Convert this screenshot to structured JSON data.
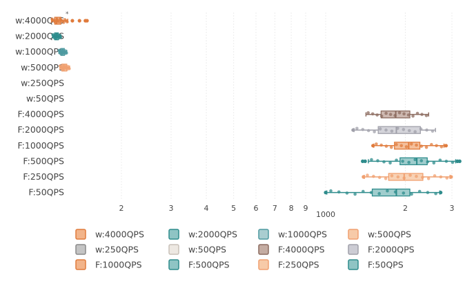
{
  "chart_data": {
    "type": "box",
    "orientation": "horizontal",
    "x_scale": "log",
    "grid": "vertical dashed",
    "legend_position": "bottom",
    "categories": [
      "w:4000QPS",
      "w:2000QPS",
      "w:1000QPS",
      "w:500QPS",
      "w:250QPS",
      "w:50QPS",
      "F:4000QPS",
      "F:2000QPS",
      "F:1000QPS",
      "F:500QPS",
      "F:250QPS",
      "F:50QPS"
    ],
    "x_tick_labels": [
      {
        "value": 20,
        "label": "2"
      },
      {
        "value": 30,
        "label": "3"
      },
      {
        "value": 40,
        "label": "4"
      },
      {
        "value": 50,
        "label": "5"
      },
      {
        "value": 60,
        "label": "6"
      },
      {
        "value": 70,
        "label": "7"
      },
      {
        "value": 80,
        "label": "8"
      },
      {
        "value": 90,
        "label": "9"
      },
      {
        "value": 1000,
        "label": "1000"
      },
      {
        "value": 2000,
        "label": "2"
      },
      {
        "value": 3000,
        "label": "3"
      }
    ],
    "x_range": [
      9.5,
      3300
    ],
    "series": [
      {
        "name": "w:4000QPS",
        "color": "#e07b3c",
        "fill": "#f2b48a",
        "min": 11.3,
        "q1": 11.6,
        "median": 11.8,
        "q3": 12.2,
        "max": 12.9,
        "outliers": [
          13.4,
          14.2,
          14.9,
          15.1
        ]
      },
      {
        "name": "w:2000QPS",
        "color": "#2e8c8c",
        "fill": "#8fc4c4",
        "min": 11.4,
        "q1": 11.6,
        "median": 11.75,
        "q3": 11.95,
        "max": 12.2,
        "outliers": []
      },
      {
        "name": "w:1000QPS",
        "color": "#4e9aa0",
        "fill": "#a9cdd0",
        "min": 12.0,
        "q1": 12.2,
        "median": 12.35,
        "q3": 12.55,
        "max": 12.8,
        "outliers": []
      },
      {
        "name": "w:500QPS",
        "color": "#f0a070",
        "fill": "#f7caa8",
        "min": 12.1,
        "q1": 12.3,
        "median": 12.5,
        "q3": 12.8,
        "max": 13.1,
        "outliers": []
      },
      {
        "name": "w:250QPS",
        "color": "#8a8a8a",
        "fill": "#c4c4c4"
      },
      {
        "name": "w:50QPS",
        "color": "#c8c0b8",
        "fill": "#ede8e2"
      },
      {
        "name": "F:4000QPS",
        "color": "#8c6c60",
        "fill": "#c4aca2",
        "min": 1420,
        "q1": 1620,
        "median": 1840,
        "q3": 2080,
        "max": 2450,
        "outliers": []
      },
      {
        "name": "F:2000QPS",
        "color": "#a0a0aa",
        "fill": "#ccccd4",
        "min": 1280,
        "q1": 1580,
        "median": 1850,
        "q3": 2280,
        "max": 2600,
        "outliers": [
          1270
        ]
      },
      {
        "name": "F:1000QPS",
        "color": "#e07b3c",
        "fill": "#f2b48a",
        "min": 1520,
        "q1": 1820,
        "median": 2060,
        "q3": 2270,
        "max": 2800,
        "outliers": [
          1510,
          2850
        ]
      },
      {
        "name": "F:500QPS",
        "color": "#2e8c8c",
        "fill": "#8fc4c4",
        "min": 1450,
        "q1": 1910,
        "median": 2210,
        "q3": 2420,
        "max": 3100,
        "outliers": [
          1380,
          1410,
          3150,
          3210
        ]
      },
      {
        "name": "F:250QPS",
        "color": "#f0a070",
        "fill": "#f7caa8",
        "min": 1400,
        "q1": 1730,
        "median": 1980,
        "q3": 2330,
        "max": 2950,
        "outliers": [
          1390,
          2980
        ]
      },
      {
        "name": "F:50QPS",
        "color": "#2e8c8c",
        "fill": "#8fc4c4",
        "min": 1010,
        "q1": 1500,
        "median": 1850,
        "q3": 2080,
        "max": 2700,
        "outliers": [
          1000,
          2720
        ]
      }
    ]
  }
}
